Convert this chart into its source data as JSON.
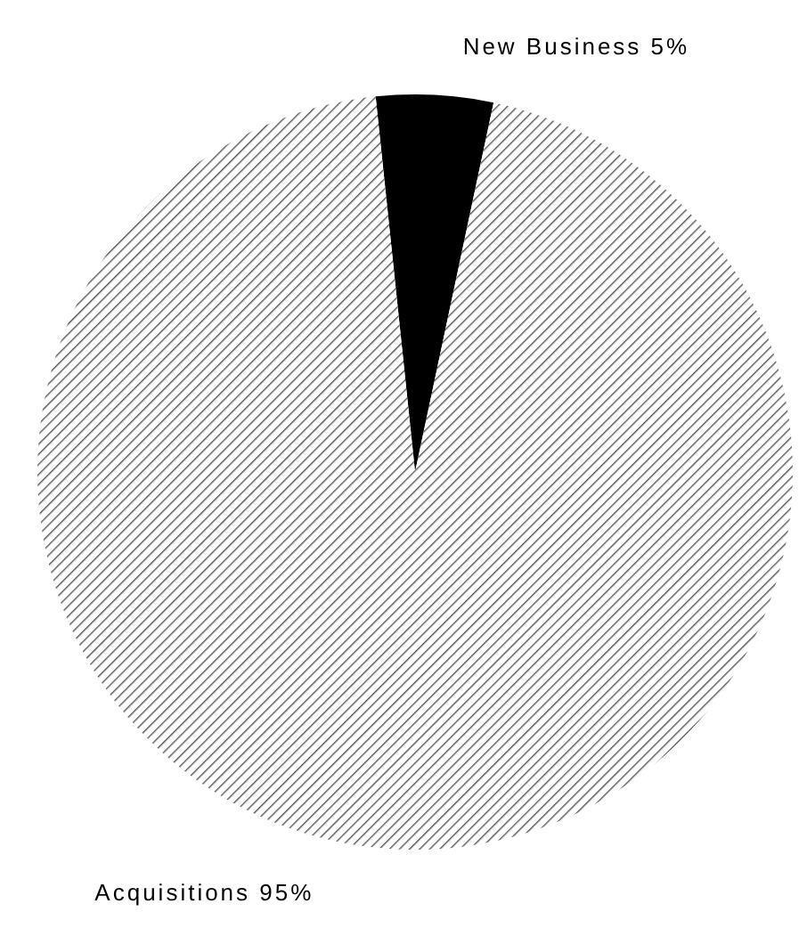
{
  "chart_data": {
    "type": "pie",
    "categories": [
      "New Business",
      "Acquisitions"
    ],
    "values": [
      5,
      95
    ],
    "value_labels": [
      "5%",
      "95%"
    ],
    "colors": [
      "#000000",
      "#555555"
    ]
  }
}
